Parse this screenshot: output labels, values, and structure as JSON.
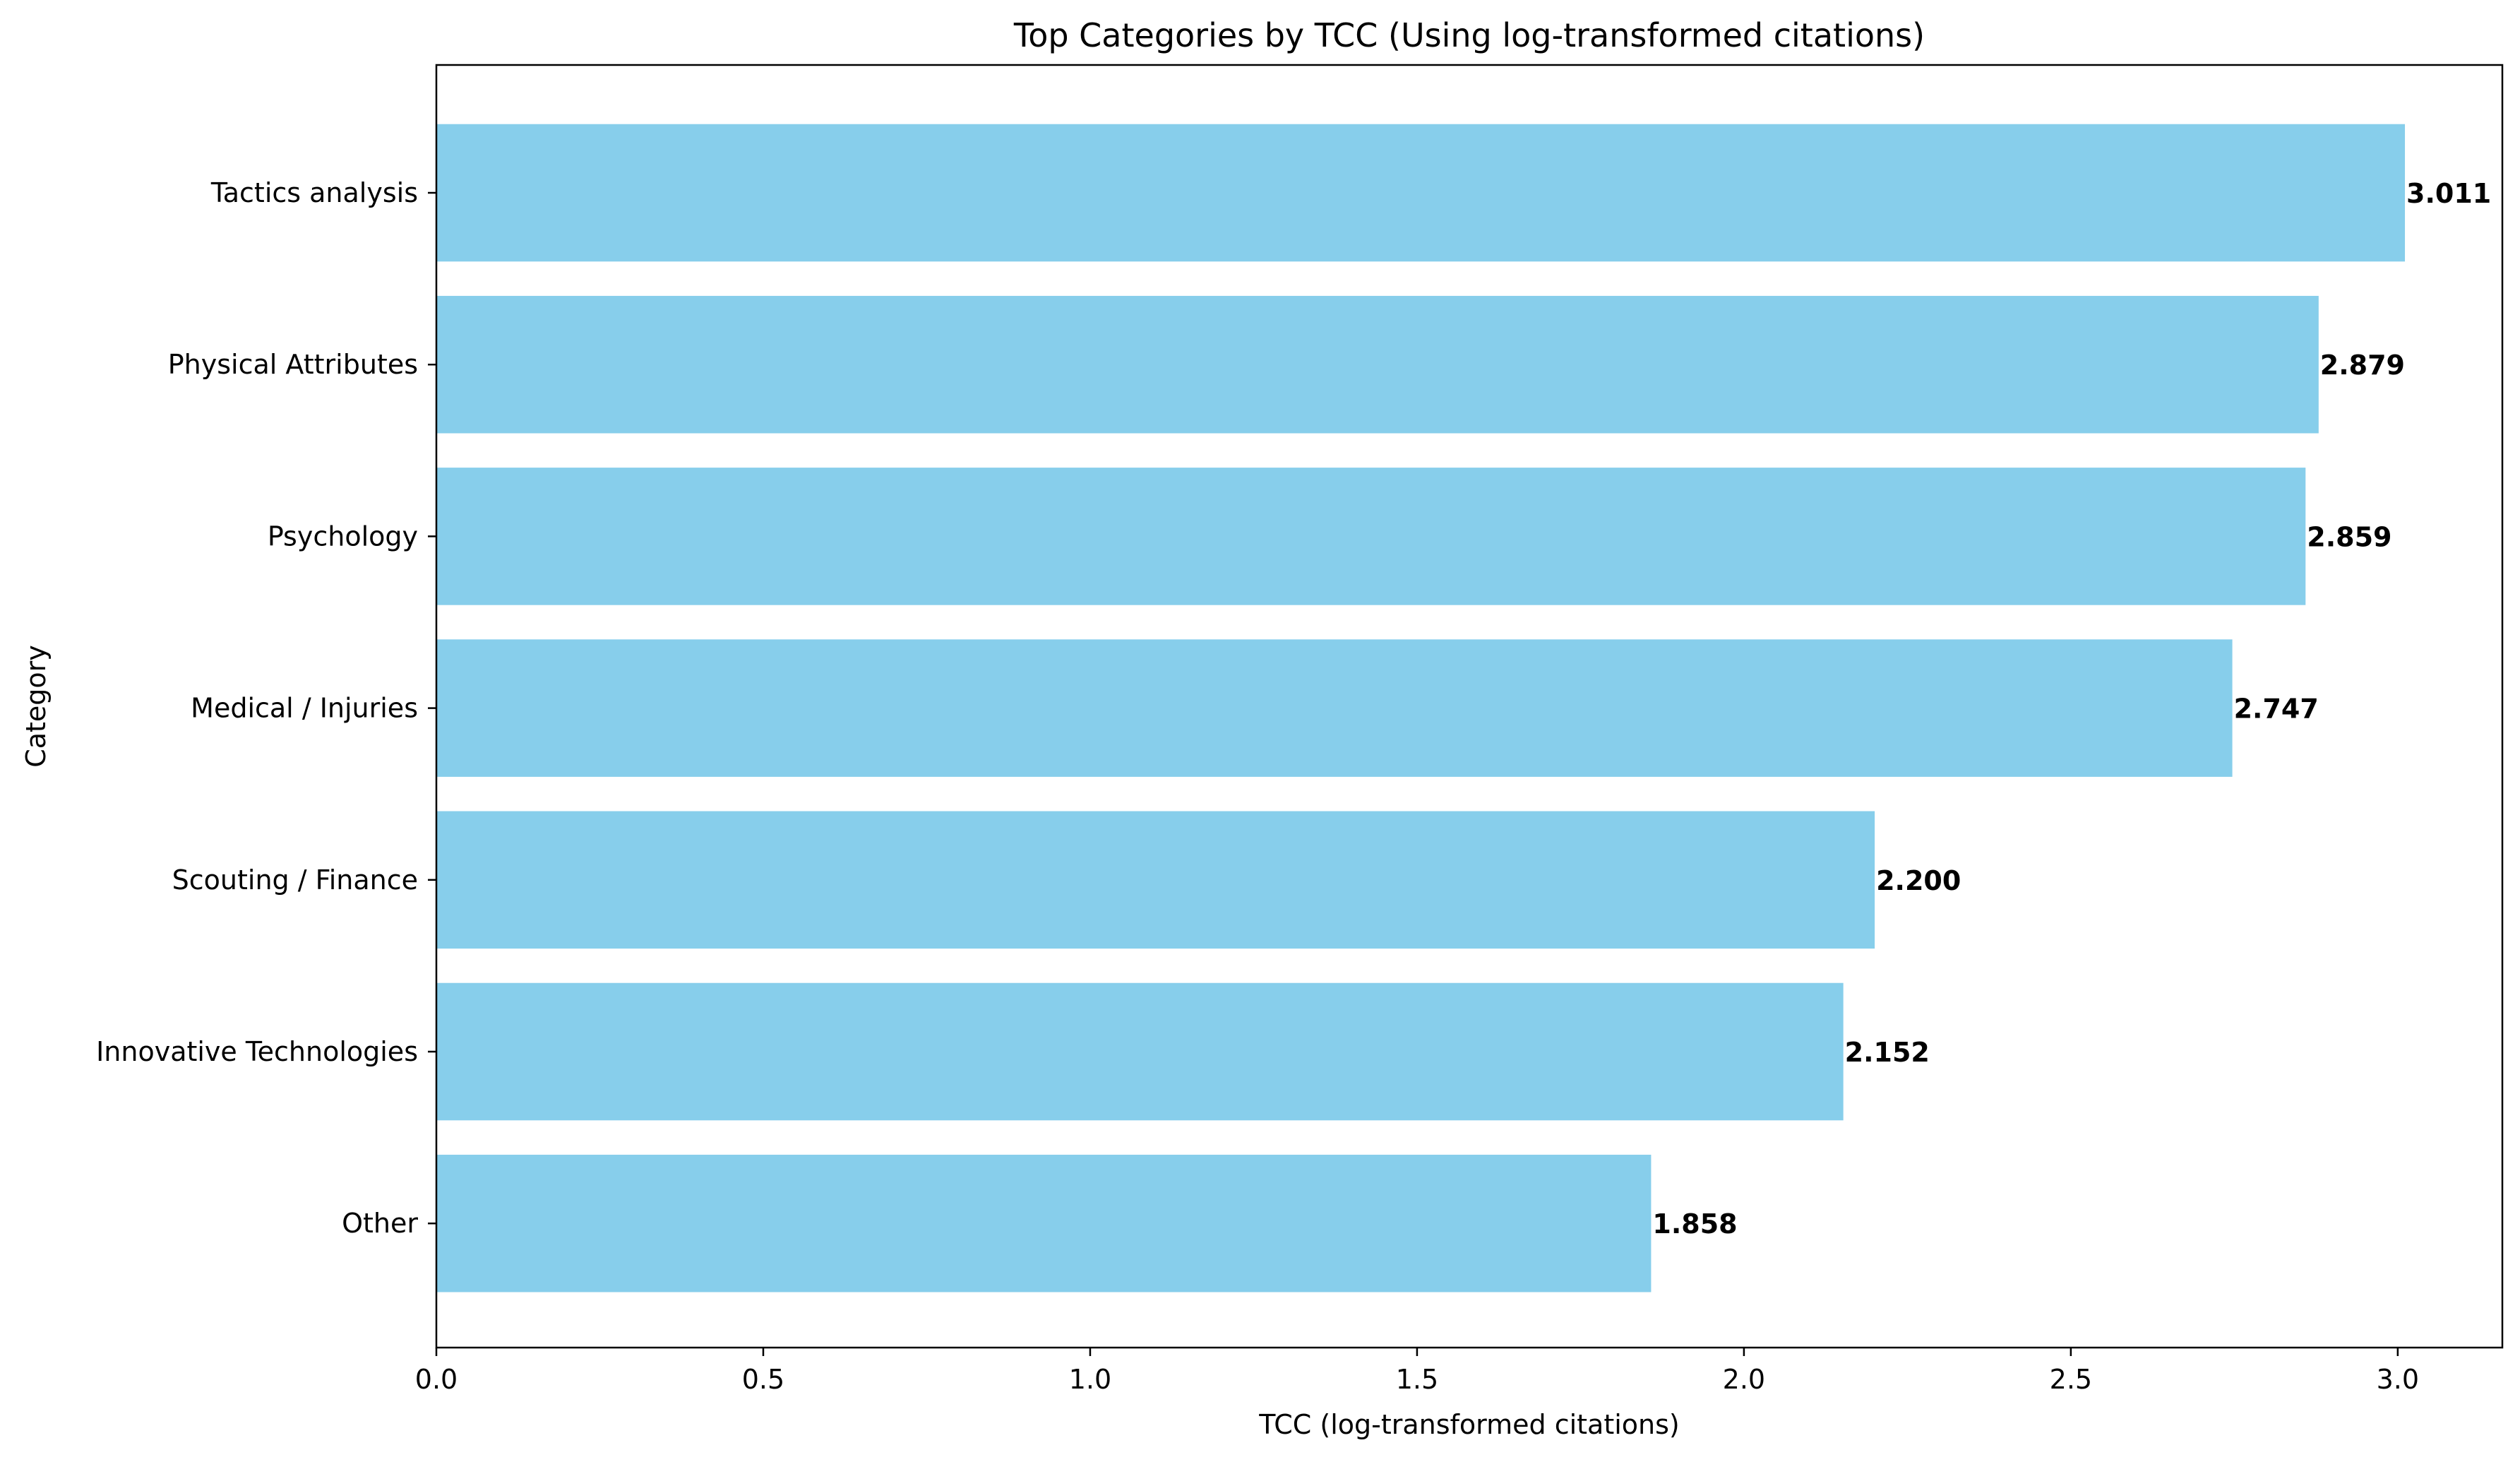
{
  "chart_data": {
    "type": "bar",
    "orientation": "horizontal",
    "title": "Top Categories by TCC (Using log-transformed citations)",
    "xlabel": "TCC (log-transformed citations)",
    "ylabel": "Category",
    "categories": [
      "Tactics analysis",
      "Physical Attributes",
      "Psychology",
      "Medical / Injuries",
      "Scouting / Finance",
      "Innovative Technologies",
      "Other"
    ],
    "values": [
      3.011,
      2.879,
      2.859,
      2.747,
      2.2,
      2.152,
      1.858
    ],
    "value_labels": [
      "3.011",
      "2.879",
      "2.859",
      "2.747",
      "2.200",
      "2.152",
      "1.858"
    ],
    "xlim": [
      0,
      3.16
    ],
    "xticks": [
      0.0,
      0.5,
      1.0,
      1.5,
      2.0,
      2.5,
      3.0
    ],
    "xtick_labels": [
      "0.0",
      "0.5",
      "1.0",
      "1.5",
      "2.0",
      "2.5",
      "3.0"
    ],
    "bar_color": "#87ceeb",
    "grid": false,
    "legend": "none"
  }
}
